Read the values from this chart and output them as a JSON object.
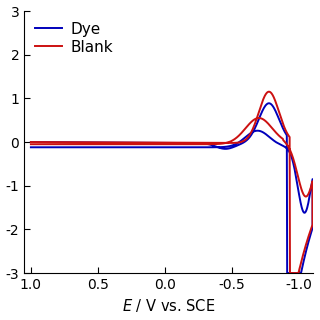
{
  "title": "",
  "xlabel": "E / V vs. SCE",
  "ylabel": "",
  "xlim": [
    1.05,
    -1.1
  ],
  "ylim": [
    -3.0,
    3.0
  ],
  "yticks": [
    -3,
    -2,
    -1,
    0,
    1,
    2,
    3
  ],
  "xticks": [
    1.0,
    0.5,
    0.0,
    -0.5,
    -1.0
  ],
  "legend": [
    {
      "label": "Blank",
      "color": "#cc1111"
    },
    {
      "label": "Dye",
      "color": "#0000bb"
    }
  ],
  "line_width": 1.4,
  "background_color": "#ffffff"
}
